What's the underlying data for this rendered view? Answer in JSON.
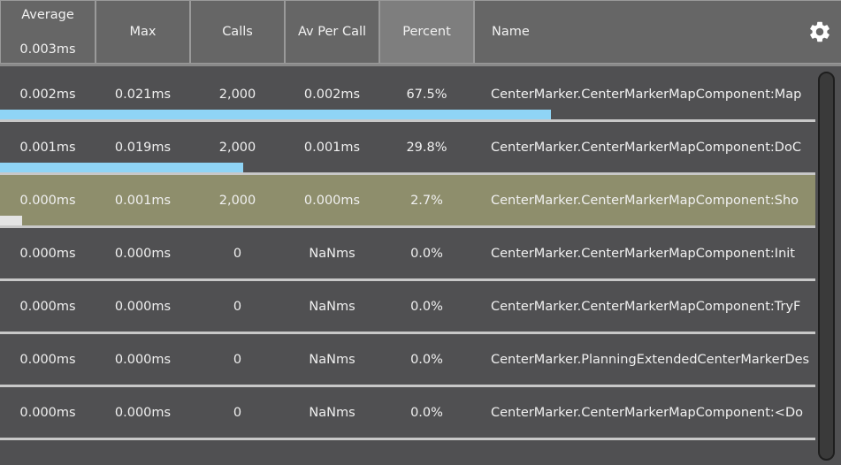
{
  "header": {
    "columns": [
      {
        "label": "Average",
        "sub": "0.003ms"
      },
      {
        "label": "Max"
      },
      {
        "label": "Calls"
      },
      {
        "label": "Av Per Call"
      },
      {
        "label": "Percent"
      },
      {
        "label": "Name"
      }
    ],
    "sorted_column": "Percent",
    "settings_icon": "gear-icon"
  },
  "rows": [
    {
      "average": "0.002ms",
      "max": "0.021ms",
      "calls": "2,000",
      "av_per_call": "0.002ms",
      "percent": "67.5%",
      "name": "CenterMarker.CenterMarkerMapComponent:Map",
      "bar_fraction": 0.655,
      "bar_color": "#8fd4f5"
    },
    {
      "average": "0.001ms",
      "max": "0.019ms",
      "calls": "2,000",
      "av_per_call": "0.001ms",
      "percent": "29.8%",
      "name": "CenterMarker.CenterMarkerMapComponent:DoC",
      "bar_fraction": 0.289,
      "bar_color": "#8fd4f5"
    },
    {
      "average": "0.000ms",
      "max": "0.001ms",
      "calls": "2,000",
      "av_per_call": "0.000ms",
      "percent": "2.7%",
      "name": "CenterMarker.CenterMarkerMapComponent:Sho",
      "bar_fraction": 0.026,
      "bar_color": "#e4e4e4",
      "selected": true
    },
    {
      "average": "0.000ms",
      "max": "0.000ms",
      "calls": "0",
      "av_per_call": "NaNms",
      "percent": "0.0%",
      "name": "CenterMarker.CenterMarkerMapComponent:Init",
      "bar_fraction": 0
    },
    {
      "average": "0.000ms",
      "max": "0.000ms",
      "calls": "0",
      "av_per_call": "NaNms",
      "percent": "0.0%",
      "name": "CenterMarker.CenterMarkerMapComponent:TryF",
      "bar_fraction": 0
    },
    {
      "average": "0.000ms",
      "max": "0.000ms",
      "calls": "0",
      "av_per_call": "NaNms",
      "percent": "0.0%",
      "name": "CenterMarker.PlanningExtendedCenterMarkerDes",
      "bar_fraction": 0
    },
    {
      "average": "0.000ms",
      "max": "0.000ms",
      "calls": "0",
      "av_per_call": "NaNms",
      "percent": "0.0%",
      "name": "CenterMarker.CenterMarkerMapComponent:<Do",
      "bar_fraction": 0
    }
  ],
  "colors": {
    "background": "#505052",
    "header": "#666666",
    "sorted_header": "#7e7e7e",
    "selected_row": "#8e8e6c",
    "bar": "#8fd4f5"
  }
}
